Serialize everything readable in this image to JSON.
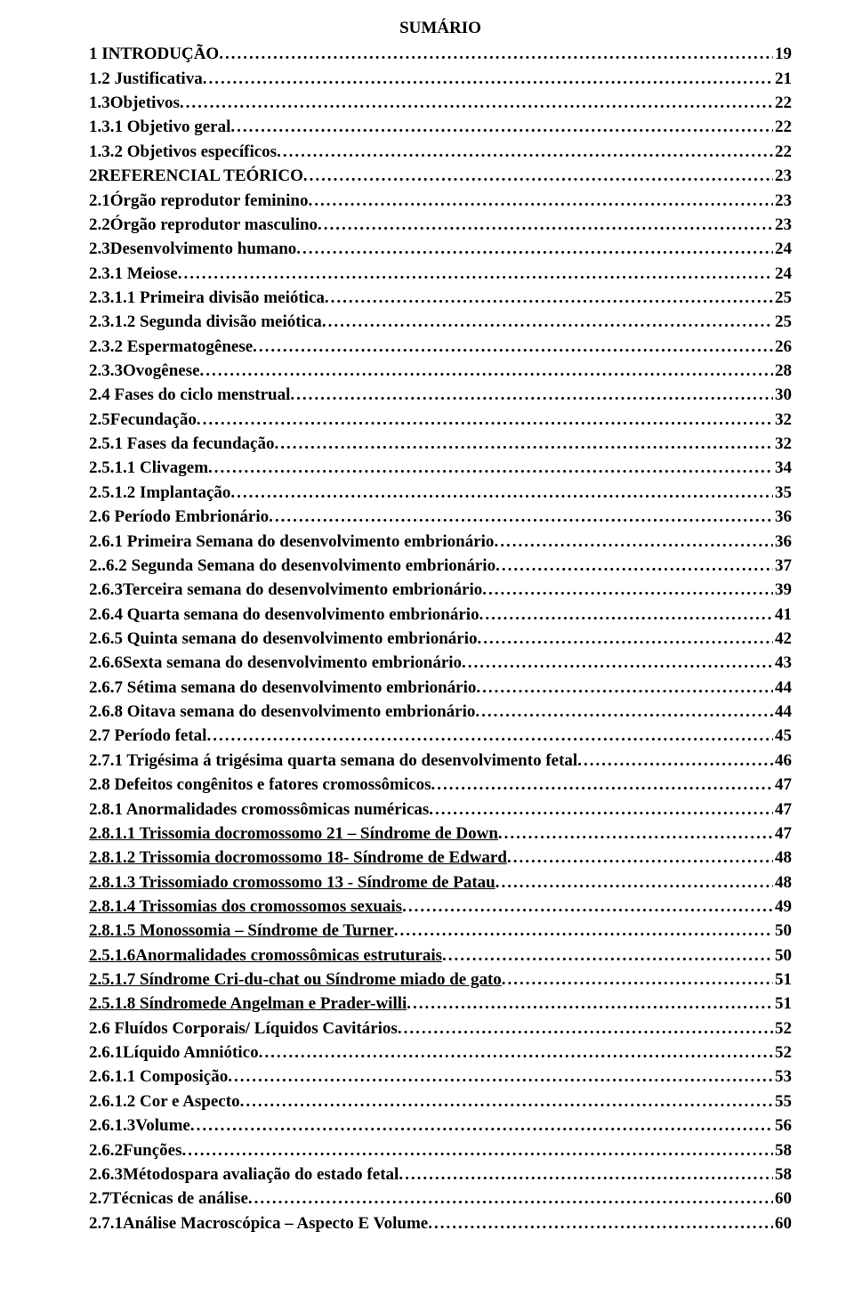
{
  "title": "SUMÁRIO",
  "font_family": "Times New Roman",
  "font_size_pt": 14,
  "text_color": "#000000",
  "background_color": "#ffffff",
  "entries": [
    {
      "label": "1 INTRODUÇÃO",
      "page": "19",
      "underline": false
    },
    {
      "label": "1.2 Justificativa",
      "page": "21",
      "underline": false
    },
    {
      "label": "1.3Objetivos",
      "page": "22",
      "underline": false
    },
    {
      "label": "1.3.1 Objetivo geral",
      "page": "22",
      "underline": false
    },
    {
      "label": "1.3.2 Objetivos específicos",
      "page": "22",
      "underline": false
    },
    {
      "label": "2REFERENCIAL TEÓRICO",
      "page": "23",
      "underline": false
    },
    {
      "label": "2.1Órgão reprodutor feminino",
      "page": "23",
      "underline": false
    },
    {
      "label": "2.2Órgão reprodutor masculino",
      "page": "23",
      "underline": false
    },
    {
      "label": "2.3Desenvolvimento humano",
      "page": "24",
      "underline": false
    },
    {
      "label": "2.3.1 Meiose",
      "page": "24",
      "underline": false
    },
    {
      "label": "2.3.1.1 Primeira divisão meiótica",
      "page": "25",
      "underline": false
    },
    {
      "label": "2.3.1.2 Segunda divisão meiótica",
      "page": "25",
      "underline": false
    },
    {
      "label": "2.3.2 Espermatogênese",
      "page": "26",
      "underline": false
    },
    {
      "label": "2.3.3Ovogênese",
      "page": "28",
      "underline": false
    },
    {
      "label": "2.4 Fases do ciclo menstrual",
      "page": "30",
      "underline": false
    },
    {
      "label": "2.5Fecundação",
      "page": "32",
      "underline": false
    },
    {
      "label": "2.5.1 Fases da fecundação",
      "page": "32",
      "underline": false
    },
    {
      "label": "2.5.1.1 Clivagem",
      "page": "34",
      "underline": false
    },
    {
      "label": "2.5.1.2 Implantação",
      "page": "35",
      "underline": false
    },
    {
      "label": "2.6  Período Embrionário",
      "page": "36",
      "underline": false
    },
    {
      "label": "2.6.1 Primeira Semana do desenvolvimento embrionário",
      "page": "36",
      "underline": false
    },
    {
      "label": "2..6.2 Segunda Semana do desenvolvimento embrionário",
      "page": "37",
      "underline": false
    },
    {
      "label": "2.6.3Terceira semana do desenvolvimento embrionário",
      "page": "39",
      "underline": false
    },
    {
      "label": "2.6.4 Quarta semana do desenvolvimento embrionário",
      "page": "41",
      "underline": false
    },
    {
      "label": "2.6.5 Quinta semana do desenvolvimento embrionário",
      "page": "42",
      "underline": false
    },
    {
      "label": "2.6.6Sexta semana do desenvolvimento embrionário",
      "page": "43",
      "underline": false
    },
    {
      "label": "2.6.7 Sétima semana do desenvolvimento embrionário",
      "page": "44",
      "underline": false
    },
    {
      "label": "2.6.8 Oitava semana do desenvolvimento embrionário",
      "page": "44",
      "underline": false
    },
    {
      "label": "2.7 Período fetal",
      "page": "45",
      "underline": false
    },
    {
      "label": "2.7.1 Trigésima á trigésima quarta semana do desenvolvimento fetal",
      "page": "46",
      "underline": false
    },
    {
      "label": "2.8 Defeitos congênitos e fatores cromossômicos",
      "page": "47",
      "underline": false
    },
    {
      "label": "2.8.1 Anormalidades cromossômicas numéricas",
      "page": "47",
      "underline": false
    },
    {
      "label": "2.8.1.1 Trissomia docromossomo 21 – Síndrome de Down",
      "page": "47",
      "underline": true
    },
    {
      "label": "2.8.1.2 Trissomia docromossomo 18- Síndrome de Edward",
      "page": "48",
      "underline": true
    },
    {
      "label": "2.8.1.3 Trissomiado cromossomo 13 - Síndrome de Patau",
      "page": "48",
      "underline": true
    },
    {
      "label": "2.8.1.4 Trissomias dos cromossomos sexuais",
      "page": "49",
      "underline": true
    },
    {
      "label": "2.8.1.5 Monossomia – Síndrome de Turner",
      "page": "50",
      "underline": true
    },
    {
      "label": "2.5.1.6Anormalidades cromossômicas estruturais",
      "page": "50",
      "underline": true
    },
    {
      "label": "2.5.1.7 Síndrome Cri-du-chat ou Síndrome miado de gato",
      "page": "51",
      "underline": true
    },
    {
      "label": "2.5.1.8 Síndromede Angelman e Prader-willi",
      "page": "51",
      "underline": true
    },
    {
      "label": "2.6 Fluídos Corporais/ Líquidos Cavitários",
      "page": "52",
      "underline": false
    },
    {
      "label": "2.6.1Líquido Amniótico",
      "page": "52",
      "underline": false
    },
    {
      "label": "2.6.1.1 Composição",
      "page": "53",
      "underline": false
    },
    {
      "label": "2.6.1.2 Cor e Aspecto",
      "page": "55",
      "underline": false
    },
    {
      "label": "2.6.1.3Volume",
      "page": "56",
      "underline": false
    },
    {
      "label": "2.6.2Funções",
      "page": "58",
      "underline": false
    },
    {
      "label": "2.6.3Métodospara avaliação do estado fetal",
      "page": "58",
      "underline": false
    },
    {
      "label": "2.7Técnicas de análise",
      "page": "60",
      "underline": false
    },
    {
      "label": "2.7.1Análise Macroscópica – Aspecto E Volume",
      "page": "60",
      "underline": false
    }
  ]
}
